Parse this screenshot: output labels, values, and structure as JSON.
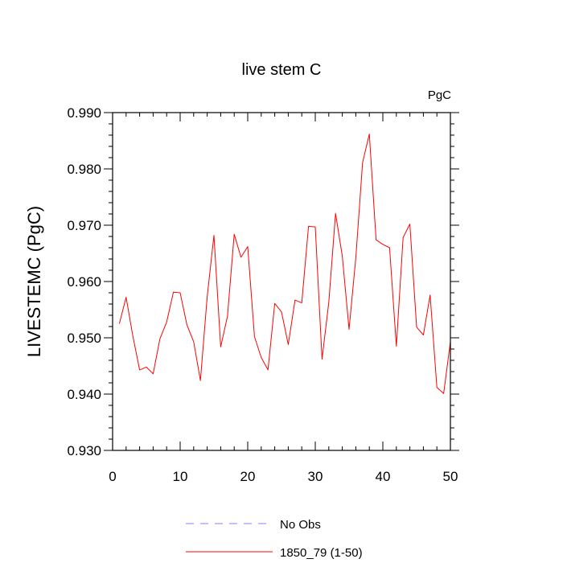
{
  "chart_data": {
    "type": "line",
    "title": "live stem C",
    "units_label": "PgC",
    "xlabel": "",
    "ylabel": "LIVESTEMC  (PgC)",
    "xlim": [
      0,
      50
    ],
    "ylim": [
      0.93,
      0.99
    ],
    "x_ticks": [
      0,
      10,
      20,
      30,
      40,
      50
    ],
    "x_tick_labels": [
      "0",
      "10",
      "20",
      "30",
      "40",
      "50"
    ],
    "y_ticks": [
      0.93,
      0.94,
      0.95,
      0.96,
      0.97,
      0.98,
      0.99
    ],
    "y_tick_labels": [
      "0.930",
      "0.940",
      "0.950",
      "0.960",
      "0.970",
      "0.980",
      "0.990"
    ],
    "series": [
      {
        "name": "1850_79 (1-50)",
        "color": "#ff0000",
        "style": "solid",
        "x": [
          1,
          2,
          3,
          4,
          5,
          6,
          7,
          8,
          9,
          10,
          11,
          12,
          13,
          14,
          15,
          16,
          17,
          18,
          19,
          20,
          21,
          22,
          23,
          24,
          25,
          26,
          27,
          28,
          29,
          30,
          31,
          32,
          33,
          34,
          35,
          36,
          37,
          38,
          39,
          40,
          41,
          42,
          43,
          44,
          45,
          46,
          47,
          48,
          49,
          50
        ],
        "values": [
          0.9525,
          0.9572,
          0.9503,
          0.9443,
          0.9448,
          0.9436,
          0.9498,
          0.9528,
          0.9581,
          0.958,
          0.9523,
          0.9493,
          0.9424,
          0.9573,
          0.9682,
          0.9484,
          0.9538,
          0.9684,
          0.9643,
          0.9662,
          0.9502,
          0.9465,
          0.9443,
          0.9561,
          0.9546,
          0.9488,
          0.9567,
          0.9562,
          0.9698,
          0.9697,
          0.9462,
          0.9563,
          0.9721,
          0.9645,
          0.9515,
          0.9642,
          0.9811,
          0.9862,
          0.9674,
          0.9666,
          0.966,
          0.9485,
          0.9678,
          0.9702,
          0.9519,
          0.9505,
          0.9576,
          0.9412,
          0.9401,
          0.9493
        ]
      }
    ],
    "legend": [
      {
        "label": "No Obs",
        "color": "#8080ff",
        "style": "dashed"
      },
      {
        "label": "1850_79 (1-50)",
        "color": "#ff0000",
        "style": "solid"
      }
    ]
  }
}
